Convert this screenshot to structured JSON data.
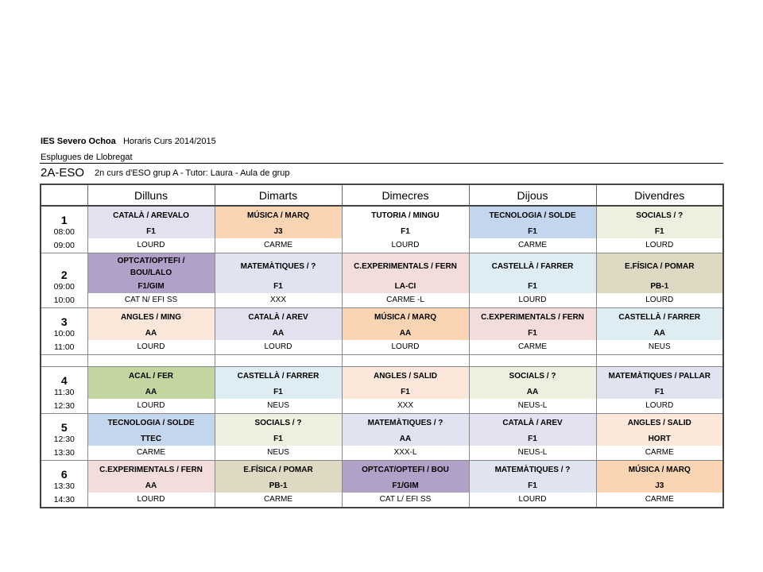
{
  "header": {
    "school": "IES Severo Ochoa",
    "schedule_label": "Horaris Curs 2014/2015",
    "city": "Esplugues de Llobregat",
    "group": "2A-ESO",
    "group_desc": "2n curs d'ESO grup A - Tutor: Laura  - Aula de grup"
  },
  "days": [
    "Dilluns",
    "Dimarts",
    "Dimecres",
    "Dijous",
    "Divendres"
  ],
  "colors": {
    "lavender": "#e3e0ef",
    "peach_dark": "#fad5b4",
    "blue": "#c4d6ee",
    "olive_light": "#ebf0df",
    "purple": "#b1a0c8",
    "lavender_blue": "#dfe4f0",
    "pink": "#f2dcdc",
    "cyan_light": "#ddedf3",
    "tan": "#ddd9c3",
    "peach_light": "#fbe8da",
    "green": "#c4d6a0",
    "white": "#ffffff"
  },
  "slots": [
    {
      "num": "1",
      "start": "08:00",
      "end": "09:00",
      "cells": [
        {
          "subject": "CATALÀ / AREVALO",
          "room": "F1",
          "teacher": "LOURD",
          "color": "#e3e0ef"
        },
        {
          "subject": "MÚSICA  / MARQ",
          "room": "J3",
          "teacher": "CARME",
          "color": "#fad5b4"
        },
        {
          "subject": "TUTORIA  / MINGU",
          "room": "F1",
          "teacher": "LOURD",
          "color": "#ffffff"
        },
        {
          "subject": "TECNOLOGIA  / SOLDE",
          "room": "F1",
          "teacher": "CARME",
          "color": "#c4d6ee"
        },
        {
          "subject": "SOCIALS / ?",
          "room": "F1",
          "teacher": "LOURD",
          "color": "#ebf0df"
        }
      ]
    },
    {
      "num": "2",
      "start": "09:00",
      "end": "10:00",
      "cells": [
        {
          "subject": "OPTCAT/OPTEFI  /",
          "subject2": "BOU/LALO",
          "room": "F1/GIM",
          "teacher": "CAT N/ EFI SS",
          "color": "#b1a0c8"
        },
        {
          "subject": "MATEMÀTIQUES   / ?",
          "room": "F1",
          "teacher": "XXX",
          "color": "#dfe4f0"
        },
        {
          "subject": "C.EXPERIMENTALS   / FERN",
          "room": "LA-CI",
          "teacher": "CARME  -L",
          "color": "#f2dcdc"
        },
        {
          "subject": "CASTELLÀ / FARRER",
          "room": "F1",
          "teacher": "LOURD",
          "color": "#ddedf3"
        },
        {
          "subject": "E.FÍSICA  / POMAR",
          "room": "PB-1",
          "teacher": "LOURD",
          "color": "#ddd9c3"
        }
      ]
    },
    {
      "num": "3",
      "start": "10:00",
      "end": "11:00",
      "cells": [
        {
          "subject": "ANGLES / MING",
          "room": "AA",
          "teacher": "LOURD",
          "color": "#fbe8da"
        },
        {
          "subject": "CATALÀ / AREV",
          "room": "AA",
          "teacher": "LOURD",
          "color": "#e3e0ef"
        },
        {
          "subject": "MÚSICA  /  MARQ",
          "room": "AA",
          "teacher": "LOURD",
          "color": "#fad5b4"
        },
        {
          "subject": "C.EXPERIMENTALS   / FERN",
          "room": "F1",
          "teacher": "CARME",
          "color": "#f2dcdc"
        },
        {
          "subject": "CASTELLÀ / FARRER",
          "room": "AA",
          "teacher": "NEUS",
          "color": "#ddedf3"
        }
      ]
    },
    {
      "num": "4",
      "start": "11:30",
      "end": "12:30",
      "cells": [
        {
          "subject": "ACAL   / FER",
          "room": "AA",
          "teacher": "LOURD",
          "color": "#c4d6a0"
        },
        {
          "subject": "CASTELLÀ / FARRER",
          "room": "F1",
          "teacher": "NEUS",
          "color": "#ddedf3"
        },
        {
          "subject": "ANGLES / SALID",
          "room": "F1",
          "teacher": "XXX",
          "color": "#fbe8da"
        },
        {
          "subject": "SOCIALS / ?",
          "room": "AA",
          "teacher": "NEUS-L",
          "color": "#ebf0df"
        },
        {
          "subject": "MATEMÀTIQUES   / PALLAR",
          "room": "F1",
          "teacher": "LOURD",
          "color": "#dfe4f0"
        }
      ]
    },
    {
      "num": "5",
      "start": "12:30",
      "end": "13:30",
      "cells": [
        {
          "subject": "TECNOLOGIA  / SOLDE",
          "room": "TTEC",
          "teacher": "CARME",
          "color": "#c4d6ee"
        },
        {
          "subject": "SOCIALS / ?",
          "room": "F1",
          "teacher": "NEUS",
          "color": "#ebf0df"
        },
        {
          "subject": "MATEMÀTIQUES   / ?",
          "room": "AA",
          "teacher": "XXX-L",
          "color": "#dfe4f0"
        },
        {
          "subject": "CATALÀ / AREV",
          "room": "F1",
          "teacher": "NEUS-L",
          "color": "#e3e0ef"
        },
        {
          "subject": "ANGLES / SALID",
          "room": "HORT",
          "teacher": "CARME",
          "color": "#fbe8da"
        }
      ]
    },
    {
      "num": "6",
      "start": "13:30",
      "end": "14:30",
      "cells": [
        {
          "subject": "C.EXPERIMENTALS   / FERN",
          "room": "AA",
          "teacher": "LOURD",
          "color": "#f2dcdc"
        },
        {
          "subject": "E.FÍSICA  / POMAR",
          "room": "PB-1",
          "teacher": "CARME",
          "color": "#ddd9c3"
        },
        {
          "subject": "OPTCAT/OPTEFI  / BOU",
          "room": "F1/GIM",
          "teacher": "CAT L/ EFI SS",
          "color": "#b1a0c8"
        },
        {
          "subject": "MATEMÀTIQUES   / ?",
          "room": "F1",
          "teacher": "LOURD",
          "color": "#dfe4f0"
        },
        {
          "subject": "MÚSICA  / MARQ",
          "room": "J3",
          "teacher": "CARME",
          "color": "#fad5b4"
        }
      ]
    }
  ]
}
